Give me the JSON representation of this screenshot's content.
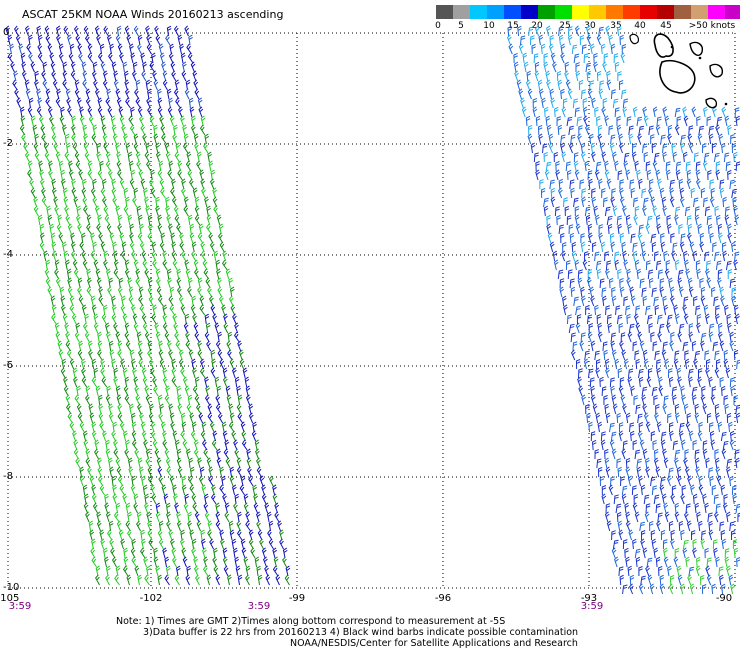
{
  "title": "ASCAT 25KM NOAA Winds 20160213 ascending",
  "colorbar": {
    "colors": [
      "#555555",
      "#a0a0a0",
      "#00c8ff",
      "#00a0ff",
      "#0050ff",
      "#0000c8",
      "#00a000",
      "#00e000",
      "#ffff00",
      "#ffc800",
      "#ff7800",
      "#ff3c00",
      "#e60000",
      "#b40000",
      "#a06040",
      "#d2a070",
      "#ff00ff",
      "#c800c8",
      "#8c00c8",
      "#500078"
    ],
    "labels": [
      "0",
      "5",
      "10",
      "15",
      "20",
      "25",
      "30",
      "35",
      "40",
      "45",
      ">50 knots"
    ]
  },
  "axes": {
    "y_ticks": [
      "0",
      "-2",
      "-4",
      "-6",
      "-8",
      "-10"
    ],
    "x_ticks": [
      "-105",
      "-102",
      "-99",
      "-96",
      "-93",
      "-90"
    ],
    "pass_times": [
      "3:59",
      "3:59",
      "3:59"
    ]
  },
  "notes": {
    "line1": "Note: 1) Times are GMT 2)Times along bottom correspond to measurement at -5S",
    "line2": "3)Data buffer is 22 hrs from 20160213 4) Black wind barbs indicate possible contamination",
    "line3": "NOAA/NESDIS/Center for Satellite Applications and Research"
  },
  "swaths": {
    "left_pass": {
      "wind_colors": [
        "#22cc22",
        "#118811",
        "#1111bb",
        "#2255cc"
      ]
    },
    "right_pass": {
      "wind_colors": [
        "#1a33cc",
        "#1f66dd",
        "#22aaee",
        "#33cc33"
      ]
    }
  }
}
